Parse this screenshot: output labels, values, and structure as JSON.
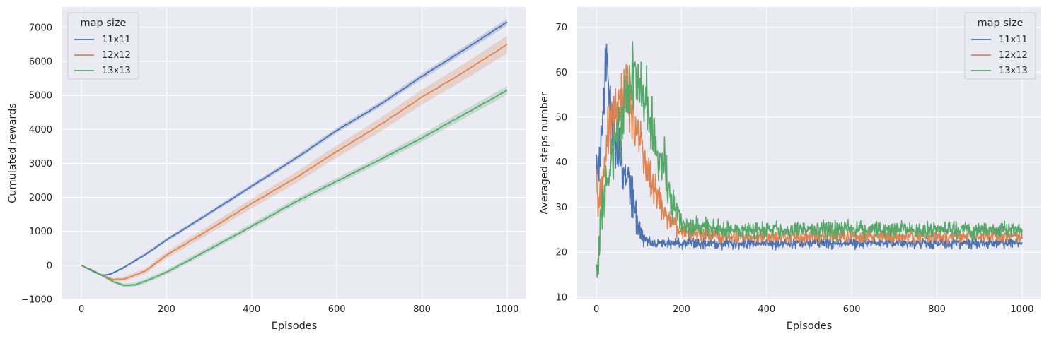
{
  "chart_data": [
    {
      "type": "line",
      "title": "",
      "xlabel": "Episodes",
      "ylabel": "Cumulated rewards",
      "xlim": [
        -45,
        1045
      ],
      "ylim": [
        -1000,
        7600
      ],
      "xticks": [
        0,
        200,
        400,
        600,
        800,
        1000
      ],
      "yticks": [
        -1000,
        0,
        1000,
        2000,
        3000,
        4000,
        5000,
        6000,
        7000
      ],
      "ytick_labels": [
        "−1000",
        "0",
        "1000",
        "2000",
        "3000",
        "4000",
        "5000",
        "6000",
        "7000"
      ],
      "grid": true,
      "legend": {
        "title": "map size",
        "position": "top-left"
      },
      "series": [
        {
          "name": "11x11",
          "color": "#4c72b0",
          "x": [
            0,
            20,
            40,
            55,
            70,
            100,
            150,
            200,
            300,
            400,
            500,
            600,
            700,
            800,
            900,
            1000
          ],
          "y": [
            0,
            -130,
            -250,
            -290,
            -250,
            -60,
            320,
            750,
            1530,
            2330,
            3120,
            3970,
            4720,
            5560,
            6350,
            7160
          ],
          "band": [
            0,
            10,
            20,
            25,
            30,
            40,
            50,
            55,
            60,
            65,
            70,
            75,
            80,
            90,
            95,
            100
          ]
        },
        {
          "name": "12x12",
          "color": "#dd8452",
          "x": [
            0,
            25,
            50,
            75,
            100,
            150,
            200,
            300,
            400,
            500,
            600,
            700,
            800,
            900,
            1000
          ],
          "y": [
            0,
            -140,
            -300,
            -420,
            -400,
            -170,
            300,
            1050,
            1820,
            2550,
            3350,
            4120,
            4950,
            5700,
            6500
          ],
          "band": [
            0,
            15,
            30,
            45,
            60,
            80,
            100,
            120,
            140,
            160,
            180,
            200,
            220,
            240,
            260
          ]
        },
        {
          "name": "13x13",
          "color": "#55a868",
          "x": [
            0,
            25,
            50,
            75,
            100,
            125,
            150,
            200,
            300,
            400,
            500,
            600,
            700,
            800,
            900,
            1000
          ],
          "y": [
            0,
            -140,
            -310,
            -480,
            -590,
            -570,
            -470,
            -200,
            470,
            1150,
            1850,
            2480,
            3100,
            3750,
            4450,
            5150
          ],
          "band": [
            0,
            15,
            30,
            45,
            55,
            60,
            65,
            70,
            80,
            85,
            90,
            95,
            100,
            110,
            120,
            130
          ]
        }
      ]
    },
    {
      "type": "line",
      "title": "",
      "xlabel": "Episodes",
      "ylabel": "Averaged steps number",
      "xlim": [
        -45,
        1045
      ],
      "ylim": [
        9.5,
        74.5
      ],
      "xticks": [
        0,
        200,
        400,
        600,
        800,
        1000
      ],
      "yticks": [
        10,
        20,
        30,
        40,
        50,
        60,
        70
      ],
      "grid": true,
      "legend": {
        "title": "map size",
        "position": "top-right"
      },
      "series": [
        {
          "name": "11x11",
          "color": "#4c72b0",
          "x": [
            0,
            5,
            10,
            15,
            20,
            25,
            30,
            35,
            40,
            45,
            50,
            55,
            60,
            65,
            70,
            75,
            80,
            85,
            90,
            95,
            100,
            110,
            120,
            150,
            200,
            300,
            400,
            500,
            600,
            700,
            800,
            900,
            1000
          ],
          "y": [
            40,
            38,
            42,
            48,
            58,
            60,
            55,
            52,
            48,
            45,
            44,
            42,
            40,
            38,
            36,
            35,
            34,
            33,
            30,
            27,
            25,
            23,
            22.5,
            22,
            22,
            22,
            22,
            22,
            22,
            22,
            22,
            22,
            22
          ],
          "noise": [
            4,
            5,
            5,
            6,
            6,
            6,
            6,
            6,
            5,
            5,
            5,
            5,
            5,
            5,
            5,
            5,
            5,
            5,
            4,
            3,
            2,
            1.5,
            1.2,
            1,
            1,
            1,
            1,
            1,
            1,
            1,
            1,
            1,
            1
          ]
        },
        {
          "name": "12x12",
          "color": "#dd8452",
          "x": [
            0,
            5,
            10,
            15,
            20,
            25,
            30,
            35,
            40,
            45,
            50,
            55,
            60,
            65,
            70,
            75,
            80,
            85,
            90,
            100,
            110,
            120,
            130,
            140,
            150,
            160,
            170,
            180,
            190,
            200,
            300,
            400,
            500,
            600,
            700,
            800,
            900,
            1000
          ],
          "y": [
            38,
            30,
            32,
            35,
            40,
            44,
            46,
            48,
            50,
            52,
            53,
            54,
            55,
            56,
            56,
            55,
            53,
            51,
            49,
            46,
            42,
            39,
            36,
            33,
            31,
            29,
            28,
            27,
            26,
            24.5,
            23.5,
            23.5,
            23.5,
            23.5,
            23.5,
            23.5,
            23.5,
            23.5
          ],
          "noise": [
            4,
            5,
            5,
            5,
            5,
            6,
            6,
            6,
            6,
            6,
            6,
            6,
            6,
            6,
            6,
            6,
            5,
            5,
            5,
            5,
            5,
            4,
            4,
            3,
            3,
            2.5,
            2.5,
            2,
            2,
            1.5,
            1.2,
            1.2,
            1.2,
            1.2,
            1.2,
            1.2,
            1.2,
            1.2
          ]
        },
        {
          "name": "13x13",
          "color": "#55a868",
          "x": [
            0,
            3,
            6,
            10,
            15,
            20,
            25,
            30,
            35,
            40,
            45,
            50,
            55,
            60,
            65,
            70,
            75,
            80,
            85,
            90,
            95,
            100,
            110,
            120,
            130,
            140,
            150,
            160,
            170,
            180,
            190,
            200,
            300,
            400,
            500,
            600,
            700,
            800,
            900,
            1000
          ],
          "y": [
            18,
            16,
            22,
            26,
            30,
            33,
            36,
            38,
            40,
            42,
            44,
            46,
            48,
            50,
            52,
            54,
            56,
            58,
            59,
            60,
            58,
            57,
            55,
            52,
            48,
            44,
            41,
            38,
            34,
            31,
            28,
            26,
            25,
            25,
            25,
            25,
            25,
            25,
            25,
            25
          ],
          "noise": [
            3,
            3,
            4,
            4,
            5,
            5,
            5,
            6,
            6,
            6,
            6,
            6,
            6,
            6,
            6,
            6,
            6,
            6,
            6,
            6,
            6,
            6,
            6,
            6,
            6,
            5,
            5,
            5,
            4,
            4,
            3,
            2,
            1.5,
            1.5,
            1.5,
            1.5,
            1.5,
            1.5,
            1.5,
            1.5
          ]
        }
      ]
    }
  ]
}
